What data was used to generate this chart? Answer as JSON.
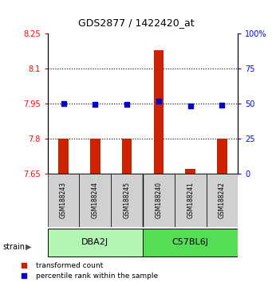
{
  "title": "GDS2877 / 1422420_at",
  "samples": [
    "GSM188243",
    "GSM188244",
    "GSM188245",
    "GSM188240",
    "GSM188241",
    "GSM188242"
  ],
  "groups": [
    {
      "name": "DBA2J",
      "color": "#b3f5b3",
      "start": 0,
      "end": 3
    },
    {
      "name": "C57BL6J",
      "color": "#55dd55",
      "start": 3,
      "end": 6
    }
  ],
  "bar_values": [
    7.8,
    7.8,
    7.8,
    8.18,
    7.67,
    7.8
  ],
  "dot_values": [
    7.95,
    7.947,
    7.948,
    7.96,
    7.94,
    7.945
  ],
  "bar_bottom": 7.65,
  "ylim_left": [
    7.65,
    8.25
  ],
  "ylim_right": [
    0,
    100
  ],
  "yticks_left": [
    7.65,
    7.8,
    7.95,
    8.1,
    8.25
  ],
  "ytick_labels_left": [
    "7.65",
    "7.8",
    "7.95",
    "8.1",
    "8.25"
  ],
  "yticks_right": [
    0,
    25,
    50,
    75,
    100
  ],
  "ytick_labels_right": [
    "0",
    "25",
    "50",
    "75",
    "100%"
  ],
  "hlines": [
    7.8,
    7.95,
    8.1
  ],
  "bar_color": "#cc2200",
  "dot_color": "#0000cc",
  "strain_label": "strain",
  "legend_bar_label": "transformed count",
  "legend_dot_label": "percentile rank within the sample",
  "plot_bg": "#ffffff",
  "sample_area_bg": "#d0d0d0"
}
